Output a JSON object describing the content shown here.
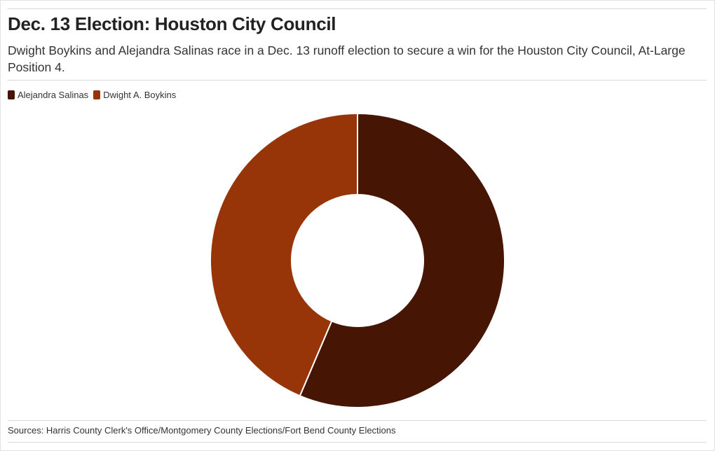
{
  "title": "Dec. 13 Election: Houston City Council",
  "subtitle": "Dwight Boykins and Alejandra Salinas race in a Dec. 13 runoff election to secure a win for the Houston City Council, At-Large Position 4.",
  "source": "Sources: Harris County Clerk's Office/Montgomery County Elections/Fort Bend County Elections",
  "chart_data": {
    "type": "pie",
    "variant": "donut",
    "categories": [
      "Alejandra Salinas",
      "Dwight A. Boykins"
    ],
    "values": [
      56.4,
      43.6
    ],
    "colors": [
      "#461503",
      "#973509"
    ],
    "legend": "top-left",
    "start_angle_deg": 0,
    "direction": "clockwise"
  }
}
